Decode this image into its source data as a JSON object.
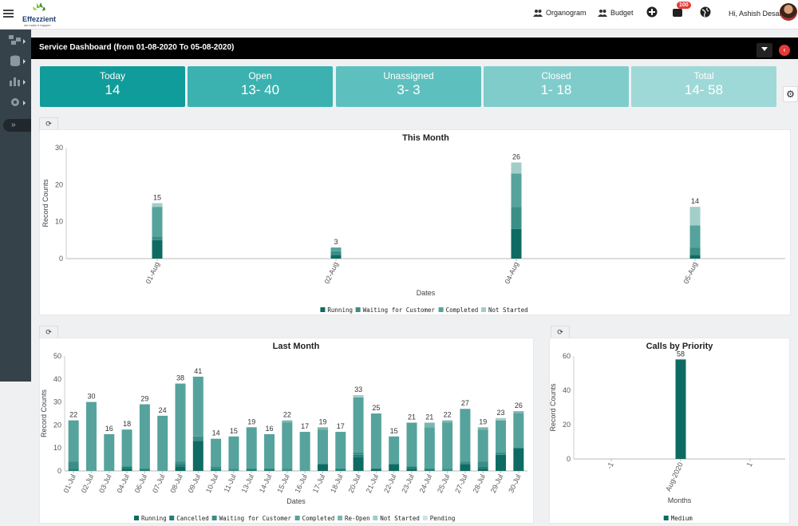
{
  "header": {
    "logo_text": "Effezzient",
    "logo_tag": "we make it happen",
    "organogram": "Organogram",
    "budget": "Budget",
    "notif_count": "100",
    "user": "Hi, Ashish Desai"
  },
  "main": {
    "title": "Service Dashboard (from 01-08-2020 To 05-08-2020)"
  },
  "tiles": [
    {
      "label": "Today",
      "value": "14",
      "color": "#109c9a"
    },
    {
      "label": "Open",
      "value": "13- 40",
      "color": "#3bb2b0"
    },
    {
      "label": "Unassigned",
      "value": "3- 3",
      "color": "#5ec0be"
    },
    {
      "label": "Closed",
      "value": "1- 18",
      "color": "#7fcccb"
    },
    {
      "label": "Total",
      "value": "14- 58",
      "color": "#9fd9d7"
    }
  ],
  "colors": {
    "running": "#0e6b63",
    "cancelled": "#1f8077",
    "waiting": "#3a8e86",
    "completed": "#55a39c",
    "reopen": "#7ab7b1",
    "notstarted": "#a3cdc9",
    "pending": "#cfe4e1"
  },
  "chart_data": [
    {
      "type": "bar",
      "title": "This Month",
      "xlabel": "Dates",
      "ylabel": "Record Counts",
      "ylim": [
        0,
        30
      ],
      "yticks": [
        0,
        10,
        20,
        30
      ],
      "categories": [
        "01-Aug",
        "02-Aug",
        "04-Aug",
        "05-Aug"
      ],
      "totals": [
        15,
        3,
        26,
        14
      ],
      "series": [
        {
          "name": "Running",
          "values": [
            5,
            1,
            8,
            1
          ]
        },
        {
          "name": "Waiting for Customer",
          "values": [
            1,
            1,
            6,
            2
          ]
        },
        {
          "name": "Completed",
          "values": [
            8,
            1,
            9,
            6
          ]
        },
        {
          "name": "Not Started",
          "values": [
            1,
            0,
            3,
            5
          ]
        }
      ]
    },
    {
      "type": "bar",
      "title": "Last Month",
      "xlabel": "Dates",
      "ylabel": "Record Counts",
      "ylim": [
        0,
        50
      ],
      "yticks": [
        0,
        10,
        20,
        30,
        40,
        50
      ],
      "categories": [
        "01-Jul",
        "02-Jul",
        "03-Jul",
        "04-Jul",
        "06-Jul",
        "07-Jul",
        "08-Jul",
        "09-Jul",
        "10-Jul",
        "11-Jul",
        "13-Jul",
        "14-Jul",
        "15-Jul",
        "16-Jul",
        "17-Jul",
        "18-Jul",
        "20-Jul",
        "21-Jul",
        "22-Jul",
        "23-Jul",
        "24-Jul",
        "25-Jul",
        "27-Jul",
        "28-Jul",
        "29-Jul",
        "30-Jul"
      ],
      "totals": [
        22,
        30,
        16,
        18,
        29,
        24,
        38,
        41,
        14,
        15,
        19,
        16,
        22,
        17,
        19,
        17,
        33,
        25,
        15,
        21,
        21,
        22,
        27,
        19,
        23,
        26
      ],
      "series": [
        {
          "name": "Running",
          "values": [
            0,
            0,
            0,
            1,
            0,
            0,
            2,
            13,
            0,
            0,
            0,
            0,
            0,
            0,
            3,
            0,
            6,
            1,
            3,
            1,
            0,
            0,
            3,
            1,
            7,
            10
          ]
        },
        {
          "name": "Cancelled",
          "values": [
            1,
            0,
            0,
            1,
            1,
            0,
            1,
            0,
            1,
            0,
            1,
            1,
            0,
            0,
            0,
            1,
            1,
            0,
            0,
            1,
            1,
            0,
            0,
            1,
            0,
            0
          ]
        },
        {
          "name": "Waiting for Customer",
          "values": [
            3,
            0,
            0,
            0,
            0,
            0,
            1,
            2,
            1,
            1,
            0,
            0,
            1,
            0,
            0,
            0,
            1,
            0,
            0,
            0,
            0,
            1,
            1,
            2,
            1,
            0
          ]
        },
        {
          "name": "Completed",
          "values": [
            18,
            30,
            16,
            16,
            28,
            24,
            34,
            26,
            12,
            14,
            18,
            15,
            20,
            17,
            15,
            16,
            24,
            24,
            12,
            19,
            18,
            20,
            23,
            14,
            14,
            15
          ]
        },
        {
          "name": "Re-Open",
          "values": [
            0,
            0,
            0,
            0,
            0,
            0,
            0,
            0,
            0,
            0,
            0,
            0,
            1,
            0,
            1,
            0,
            0,
            0,
            0,
            0,
            2,
            1,
            0,
            1,
            0,
            1
          ]
        },
        {
          "name": "Not Started",
          "values": [
            0,
            0,
            0,
            0,
            0,
            0,
            0,
            0,
            0,
            0,
            0,
            0,
            0,
            0,
            0,
            0,
            1,
            0,
            0,
            0,
            0,
            0,
            0,
            0,
            1,
            0
          ]
        },
        {
          "name": "Pending",
          "values": [
            0,
            0,
            0,
            0,
            0,
            0,
            0,
            0,
            0,
            0,
            0,
            0,
            0,
            0,
            0,
            0,
            0,
            0,
            0,
            0,
            0,
            0,
            0,
            0,
            0,
            0
          ]
        }
      ]
    },
    {
      "type": "bar",
      "title": "Calls by Priority",
      "xlabel": "Months",
      "ylabel": "Record Counts",
      "ylim": [
        0,
        60
      ],
      "yticks": [
        0,
        20,
        40,
        60
      ],
      "categories": [
        "-1",
        "Aug-2020",
        "1"
      ],
      "series": [
        {
          "name": "Medium",
          "values": [
            0,
            58,
            0
          ]
        }
      ],
      "totals": [
        null,
        58,
        null
      ]
    }
  ]
}
